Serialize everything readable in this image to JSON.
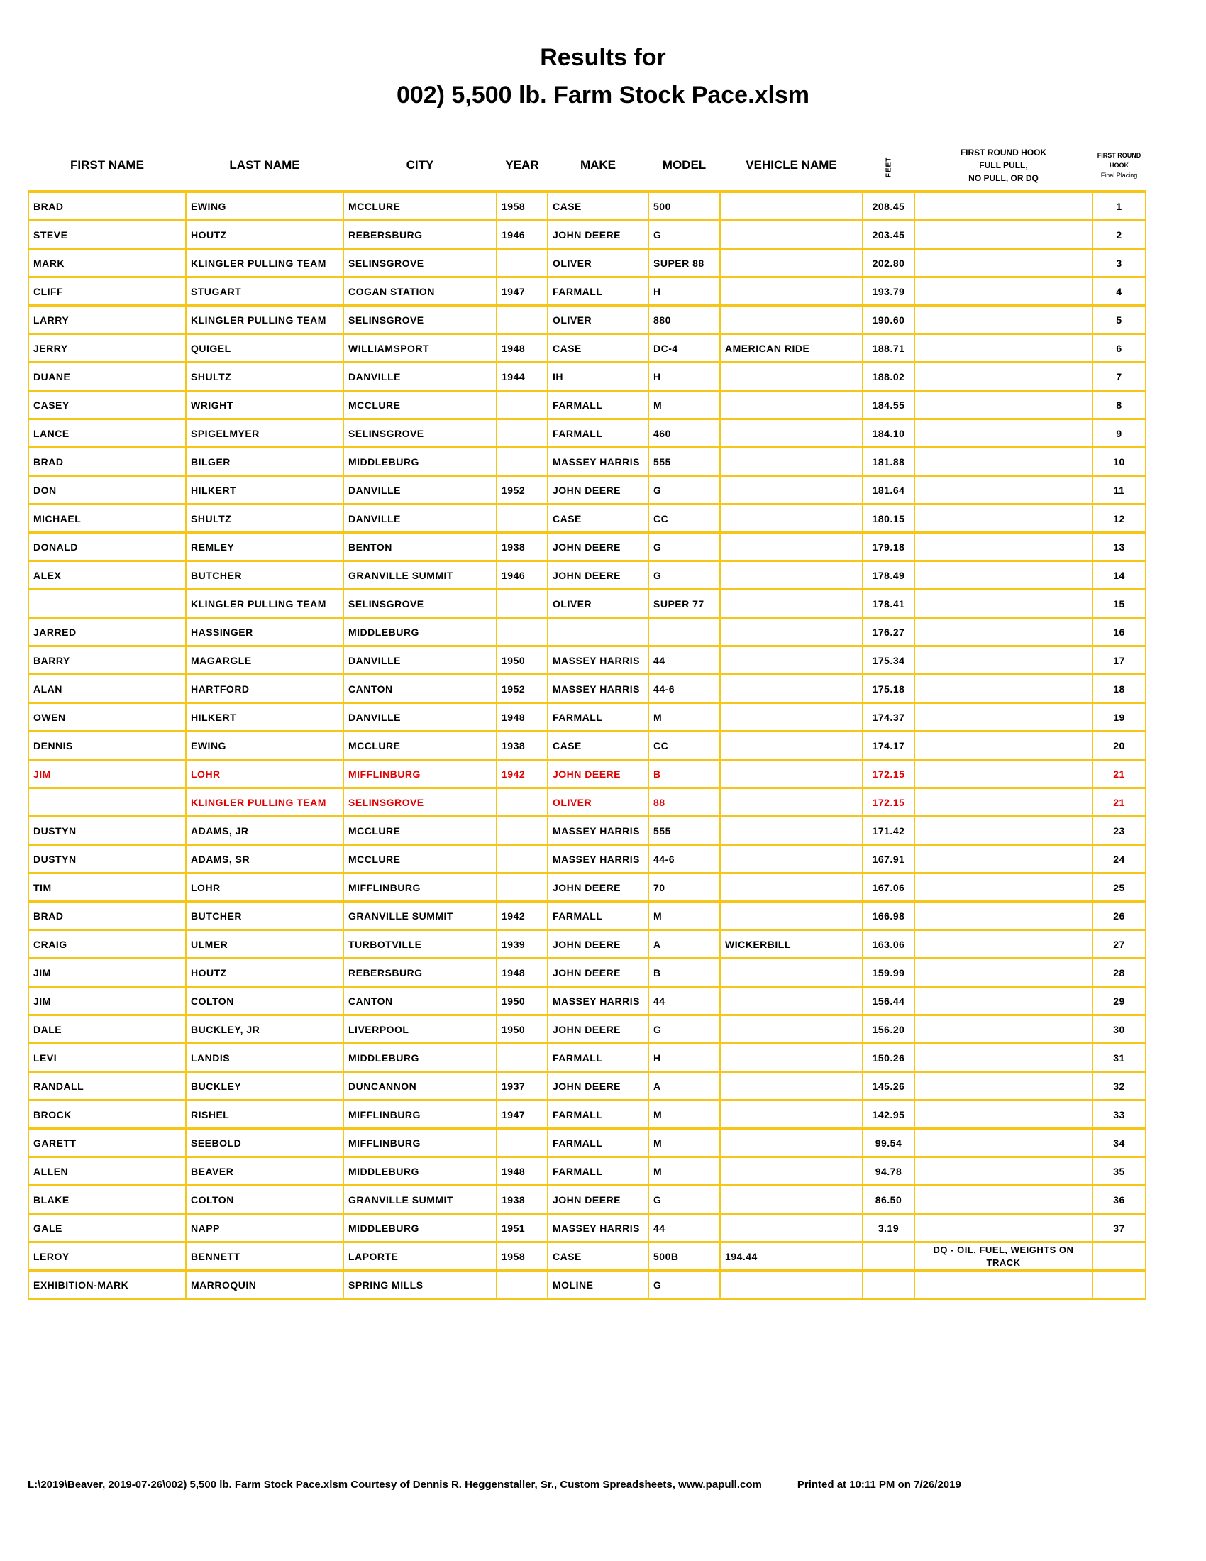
{
  "title": {
    "line1": "Results for",
    "line2": "002) 5,500 lb. Farm Stock Pace.xlsm"
  },
  "colors": {
    "grid": "#f5c518",
    "highlight_text": "#e00000"
  },
  "headers": {
    "first_name": "FIRST NAME",
    "last_name": "LAST NAME",
    "city": "CITY",
    "year": "YEAR",
    "make": "MAKE",
    "model": "MODEL",
    "vehicle_name": "VEHICLE NAME",
    "feet": "FEET",
    "hook_line1": "FIRST ROUND HOOK",
    "hook_line2": "FULL PULL,",
    "hook_line3": "NO PULL, OR DQ",
    "placing_line1": "FIRST ROUND",
    "placing_line2": "HOOK",
    "placing_line3": "Final Placing"
  },
  "rows": [
    [
      "BRAD",
      "EWING",
      "MCCLURE",
      "1958",
      "CASE",
      "500",
      "",
      "208.45",
      "",
      "1"
    ],
    [
      "STEVE",
      "HOUTZ",
      "REBERSBURG",
      "1946",
      "JOHN DEERE",
      "G",
      "",
      "203.45",
      "",
      "2"
    ],
    [
      "MARK",
      "KLINGLER PULLING TEAM",
      "SELINSGROVE",
      "",
      "OLIVER",
      "SUPER 88",
      "",
      "202.80",
      "",
      "3"
    ],
    [
      "CLIFF",
      "STUGART",
      "COGAN STATION",
      "1947",
      "FARMALL",
      "H",
      "",
      "193.79",
      "",
      "4"
    ],
    [
      "LARRY",
      "KLINGLER PULLING TEAM",
      "SELINSGROVE",
      "",
      "OLIVER",
      "880",
      "",
      "190.60",
      "",
      "5"
    ],
    [
      "JERRY",
      "QUIGEL",
      "WILLIAMSPORT",
      "1948",
      "CASE",
      "DC-4",
      "AMERICAN RIDE",
      "188.71",
      "",
      "6"
    ],
    [
      "DUANE",
      "SHULTZ",
      "DANVILLE",
      "1944",
      "IH",
      "H",
      "",
      "188.02",
      "",
      "7"
    ],
    [
      "CASEY",
      "WRIGHT",
      "MCCLURE",
      "",
      "FARMALL",
      "M",
      "",
      "184.55",
      "",
      "8"
    ],
    [
      "LANCE",
      "SPIGELMYER",
      "SELINSGROVE",
      "",
      "FARMALL",
      "460",
      "",
      "184.10",
      "",
      "9"
    ],
    [
      "BRAD",
      "BILGER",
      "MIDDLEBURG",
      "",
      "MASSEY HARRIS",
      "555",
      "",
      "181.88",
      "",
      "10"
    ],
    [
      "DON",
      "HILKERT",
      "DANVILLE",
      "1952",
      "JOHN DEERE",
      "G",
      "",
      "181.64",
      "",
      "11"
    ],
    [
      "MICHAEL",
      "SHULTZ",
      "DANVILLE",
      "",
      "CASE",
      "CC",
      "",
      "180.15",
      "",
      "12"
    ],
    [
      "DONALD",
      "REMLEY",
      "BENTON",
      "1938",
      "JOHN DEERE",
      "G",
      "",
      "179.18",
      "",
      "13"
    ],
    [
      "ALEX",
      "BUTCHER",
      "GRANVILLE SUMMIT",
      "1946",
      "JOHN DEERE",
      "G",
      "",
      "178.49",
      "",
      "14"
    ],
    [
      "",
      "KLINGLER PULLING TEAM",
      "SELINSGROVE",
      "",
      "OLIVER",
      "SUPER 77",
      "",
      "178.41",
      "",
      "15"
    ],
    [
      "JARRED",
      "HASSINGER",
      "MIDDLEBURG",
      "",
      "",
      "",
      "",
      "176.27",
      "",
      "16"
    ],
    [
      "BARRY",
      "MAGARGLE",
      "DANVILLE",
      "1950",
      "MASSEY HARRIS",
      "44",
      "",
      "175.34",
      "",
      "17"
    ],
    [
      "ALAN",
      "HARTFORD",
      "CANTON",
      "1952",
      "MASSEY HARRIS",
      "44-6",
      "",
      "175.18",
      "",
      "18"
    ],
    [
      "OWEN",
      "HILKERT",
      "DANVILLE",
      "1948",
      "FARMALL",
      "M",
      "",
      "174.37",
      "",
      "19"
    ],
    [
      "DENNIS",
      "EWING",
      "MCCLURE",
      "1938",
      "CASE",
      "CC",
      "",
      "174.17",
      "",
      "20"
    ],
    [
      "JIM",
      "LOHR",
      "MIFFLINBURG",
      "1942",
      "JOHN DEERE",
      "B",
      "",
      "172.15",
      "",
      "21",
      "red"
    ],
    [
      "",
      "KLINGLER PULLING TEAM",
      "SELINSGROVE",
      "",
      "OLIVER",
      "88",
      "",
      "172.15",
      "",
      "21",
      "red"
    ],
    [
      "DUSTYN",
      "ADAMS, JR",
      "MCCLURE",
      "",
      "MASSEY HARRIS",
      "555",
      "",
      "171.42",
      "",
      "23"
    ],
    [
      "DUSTYN",
      "ADAMS, SR",
      "MCCLURE",
      "",
      "MASSEY HARRIS",
      "44-6",
      "",
      "167.91",
      "",
      "24"
    ],
    [
      "TIM",
      "LOHR",
      "MIFFLINBURG",
      "",
      "JOHN DEERE",
      "70",
      "",
      "167.06",
      "",
      "25"
    ],
    [
      "BRAD",
      "BUTCHER",
      "GRANVILLE SUMMIT",
      "1942",
      "FARMALL",
      "M",
      "",
      "166.98",
      "",
      "26"
    ],
    [
      "CRAIG",
      "ULMER",
      "TURBOTVILLE",
      "1939",
      "JOHN DEERE",
      "A",
      "WICKERBILL",
      "163.06",
      "",
      "27"
    ],
    [
      "JIM",
      "HOUTZ",
      "REBERSBURG",
      "1948",
      "JOHN DEERE",
      "B",
      "",
      "159.99",
      "",
      "28"
    ],
    [
      "JIM",
      "COLTON",
      "CANTON",
      "1950",
      "MASSEY HARRIS",
      "44",
      "",
      "156.44",
      "",
      "29"
    ],
    [
      "DALE",
      "BUCKLEY, JR",
      "LIVERPOOL",
      "1950",
      "JOHN DEERE",
      "G",
      "",
      "156.20",
      "",
      "30"
    ],
    [
      "LEVI",
      "LANDIS",
      "MIDDLEBURG",
      "",
      "FARMALL",
      "H",
      "",
      "150.26",
      "",
      "31"
    ],
    [
      "RANDALL",
      "BUCKLEY",
      "DUNCANNON",
      "1937",
      "JOHN DEERE",
      "A",
      "",
      "145.26",
      "",
      "32"
    ],
    [
      "BROCK",
      "RISHEL",
      "MIFFLINBURG",
      "1947",
      "FARMALL",
      "M",
      "",
      "142.95",
      "",
      "33"
    ],
    [
      "GARETT",
      "SEEBOLD",
      "MIFFLINBURG",
      "",
      "FARMALL",
      "M",
      "",
      "99.54",
      "",
      "34"
    ],
    [
      "ALLEN",
      "BEAVER",
      "MIDDLEBURG",
      "1948",
      "FARMALL",
      "M",
      "",
      "94.78",
      "",
      "35"
    ],
    [
      "BLAKE",
      "COLTON",
      "GRANVILLE SUMMIT",
      "1938",
      "JOHN DEERE",
      "G",
      "",
      "86.50",
      "",
      "36"
    ],
    [
      "GALE",
      "NAPP",
      "MIDDLEBURG",
      "1951",
      "MASSEY HARRIS",
      "44",
      "",
      "3.19",
      "",
      "37"
    ],
    [
      "LEROY",
      "BENNETT",
      "LAPORTE",
      "1958",
      "CASE",
      "500B",
      "194.44",
      "",
      "DQ - OIL, FUEL, WEIGHTS ON TRACK",
      ""
    ],
    [
      "EXHIBITION-MARK",
      "MARROQUIN",
      "SPRING MILLS",
      "",
      "MOLINE",
      "G",
      "",
      "",
      "",
      ""
    ]
  ],
  "footer": {
    "source": "L:\\2019\\Beaver, 2019-07-26\\002) 5,500 lb. Farm Stock Pace.xlsm  Courtesy of Dennis R. Heggenstaller, Sr., Custom Spreadsheets, www.papull.com",
    "printed": "Printed at 10:11 PM on 7/26/2019"
  }
}
